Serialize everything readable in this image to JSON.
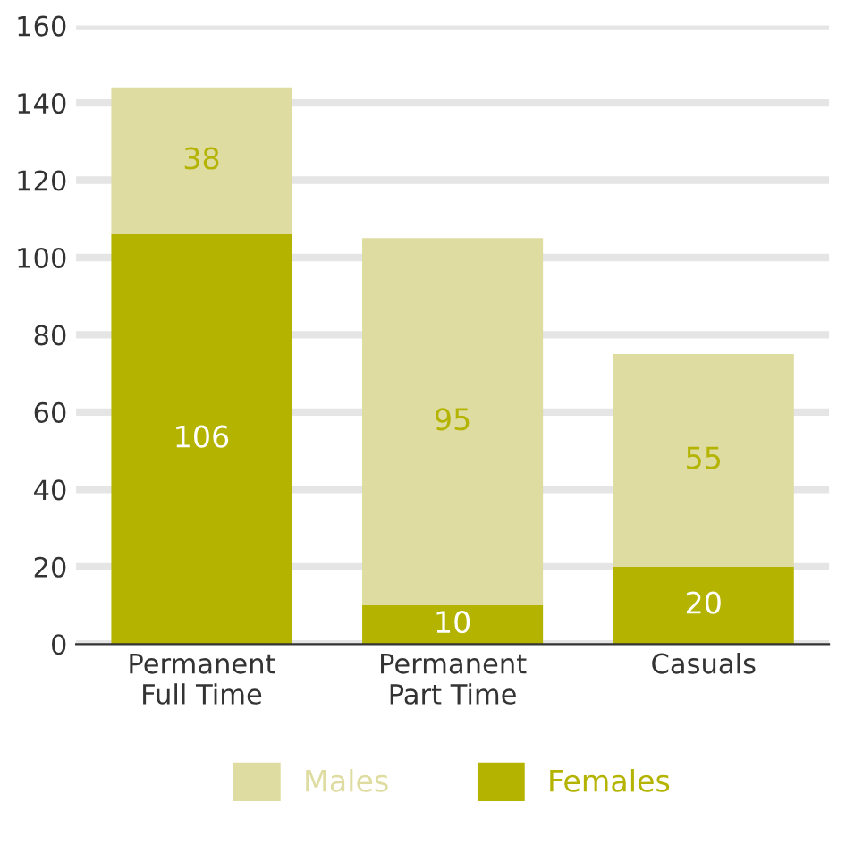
{
  "chart_data": {
    "type": "bar",
    "stacked": true,
    "categories": [
      "Permanent\nFull Time",
      "Permanent\nPart Time",
      "Casuals"
    ],
    "series": [
      {
        "name": "Females",
        "color": "#b3b300",
        "values": [
          106,
          10,
          20
        ]
      },
      {
        "name": "Males",
        "color": "#dedca0",
        "values": [
          38,
          95,
          55
        ]
      }
    ],
    "ylim": [
      0,
      160
    ],
    "yticks": [
      0,
      20,
      40,
      60,
      80,
      100,
      120,
      140,
      160
    ],
    "grid": "y",
    "legend": "bottom",
    "data_labels": true
  }
}
